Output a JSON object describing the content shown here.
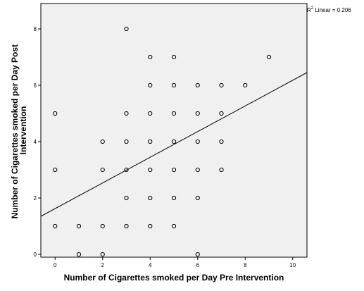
{
  "chart_data": {
    "type": "scatter",
    "title": "",
    "xlabel": "Number of Cigarettes smoked per Day Pre Intervention",
    "ylabel_lines": [
      "Number of Cigarettes smoked per Day Post",
      "Intervention"
    ],
    "xlim": [
      -0.6,
      10.6
    ],
    "ylim": [
      -0.1,
      8.9
    ],
    "x_ticks": [
      0,
      2,
      4,
      6,
      8,
      10
    ],
    "y_ticks": [
      0,
      2,
      4,
      6,
      8
    ],
    "grid": false,
    "background_color": "#f0f0f0",
    "marker_color": "#000000",
    "points": [
      {
        "x": 0,
        "y": 5
      },
      {
        "x": 0,
        "y": 3
      },
      {
        "x": 0,
        "y": 1
      },
      {
        "x": 1,
        "y": 1
      },
      {
        "x": 1,
        "y": 0
      },
      {
        "x": 2,
        "y": 4
      },
      {
        "x": 2,
        "y": 3
      },
      {
        "x": 2,
        "y": 1
      },
      {
        "x": 2,
        "y": 0
      },
      {
        "x": 3,
        "y": 8
      },
      {
        "x": 3,
        "y": 5
      },
      {
        "x": 3,
        "y": 4
      },
      {
        "x": 3,
        "y": 3
      },
      {
        "x": 3,
        "y": 2
      },
      {
        "x": 3,
        "y": 1
      },
      {
        "x": 4,
        "y": 7
      },
      {
        "x": 4,
        "y": 6
      },
      {
        "x": 4,
        "y": 5
      },
      {
        "x": 4,
        "y": 4
      },
      {
        "x": 4,
        "y": 3
      },
      {
        "x": 4,
        "y": 2
      },
      {
        "x": 4,
        "y": 1
      },
      {
        "x": 5,
        "y": 7
      },
      {
        "x": 5,
        "y": 6
      },
      {
        "x": 5,
        "y": 5
      },
      {
        "x": 5,
        "y": 4
      },
      {
        "x": 5,
        "y": 3
      },
      {
        "x": 5,
        "y": 2
      },
      {
        "x": 5,
        "y": 1
      },
      {
        "x": 6,
        "y": 6
      },
      {
        "x": 6,
        "y": 5
      },
      {
        "x": 6,
        "y": 4
      },
      {
        "x": 6,
        "y": 3
      },
      {
        "x": 6,
        "y": 2
      },
      {
        "x": 6,
        "y": 0
      },
      {
        "x": 7,
        "y": 6
      },
      {
        "x": 7,
        "y": 5
      },
      {
        "x": 7,
        "y": 4
      },
      {
        "x": 7,
        "y": 3
      },
      {
        "x": 8,
        "y": 6
      },
      {
        "x": 9,
        "y": 7
      }
    ],
    "fit_line": {
      "type": "linear",
      "y_at_xmin": 1.35,
      "y_at_xmax": 6.45
    },
    "annotation": {
      "prefix": "R",
      "superscript": "2",
      "text": " Linear = 0.206"
    }
  }
}
